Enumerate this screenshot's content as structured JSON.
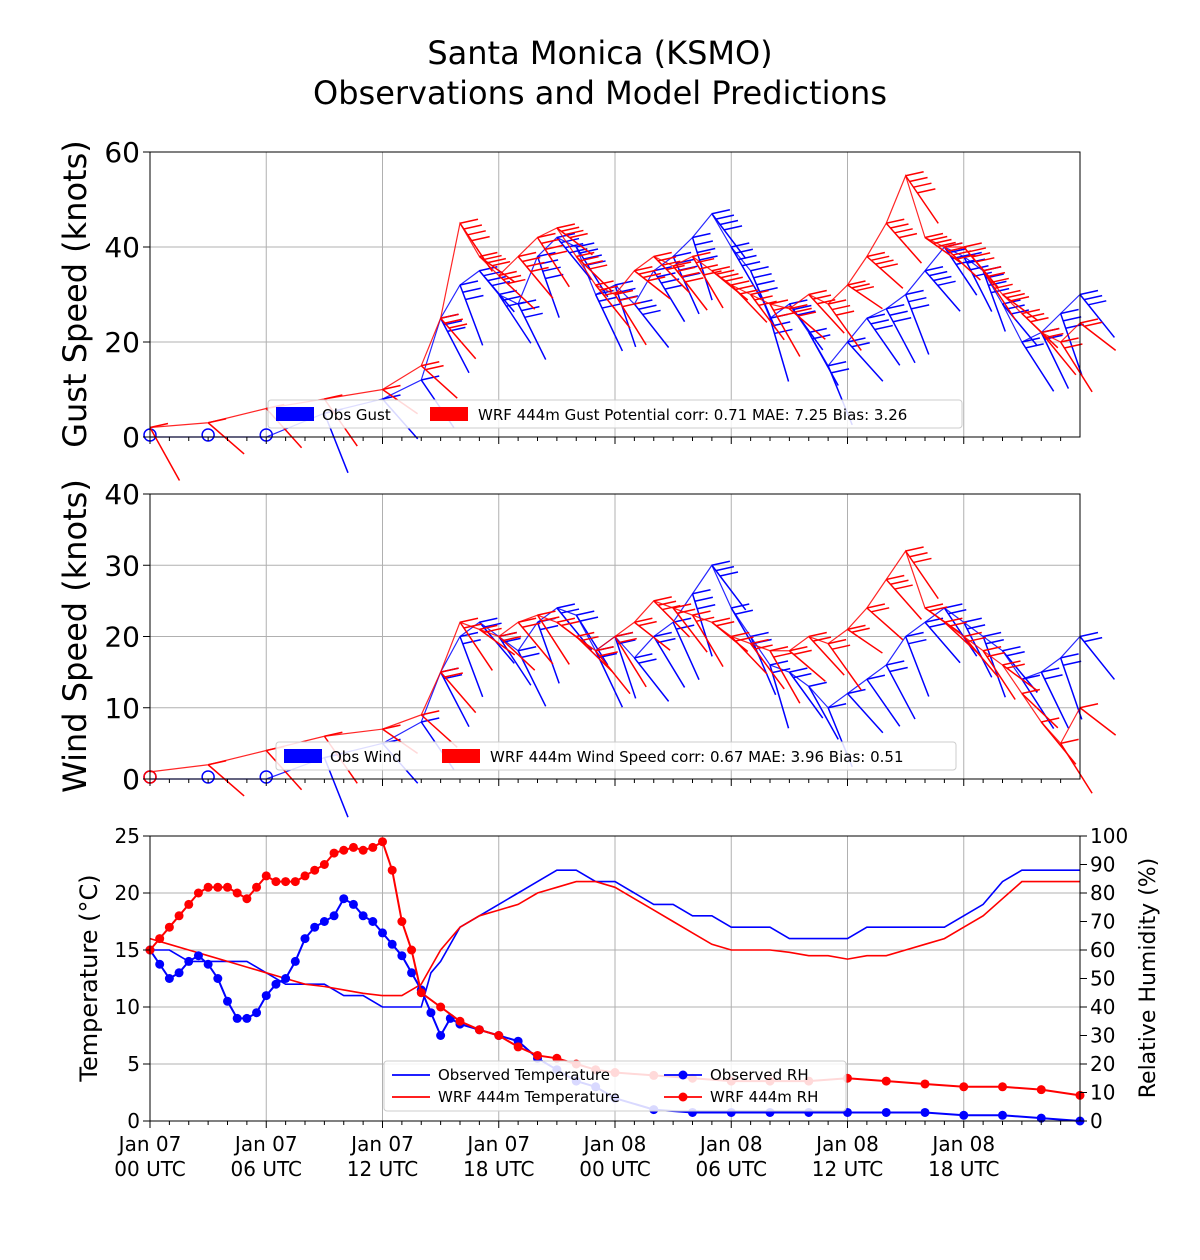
{
  "title": {
    "line1": "Santa Monica (KSMO)",
    "line2": "Observations and Model Predictions"
  },
  "colors": {
    "obs": "#0000ff",
    "model": "#ff0000",
    "grid": "#b0b0b0"
  },
  "chart_data": [
    {
      "type": "line",
      "panel": "gust",
      "ylabel": "Gust Speed (knots)",
      "ylim": [
        0,
        60
      ],
      "yticks": [
        "0",
        "20",
        "40",
        "60"
      ],
      "x_unit": "hours since Jan 07 00 UTC",
      "xlim": [
        0,
        48
      ],
      "grid": true,
      "legend_position": "lower center",
      "legend": [
        "Obs Gust",
        "WRF 444m Gust Potential corr: 0.71 MAE: 7.25 Bias: 3.26"
      ],
      "series": [
        {
          "name": "Obs Gust",
          "style": "wind barbs",
          "x": [
            0,
            3,
            6,
            9,
            12,
            14,
            15,
            16,
            17,
            18,
            19,
            20,
            21,
            22,
            23,
            24,
            25,
            26,
            27,
            28,
            29,
            30,
            31,
            32,
            33,
            34,
            35,
            36,
            37,
            38,
            39,
            40,
            41,
            42,
            43,
            44,
            45,
            46,
            47,
            48
          ],
          "y": [
            0,
            0,
            0,
            5,
            8,
            12,
            25,
            32,
            35,
            30,
            28,
            38,
            42,
            40,
            30,
            32,
            28,
            35,
            38,
            42,
            47,
            40,
            35,
            25,
            28,
            22,
            15,
            20,
            25,
            27,
            30,
            35,
            40,
            38,
            35,
            28,
            20,
            22,
            26,
            30
          ]
        },
        {
          "name": "WRF 444m Gust Potential",
          "style": "wind barbs",
          "x": [
            0,
            3,
            6,
            9,
            12,
            14,
            15,
            16,
            17,
            18,
            19,
            20,
            21,
            22,
            23,
            24,
            25,
            26,
            27,
            28,
            29,
            30,
            31,
            32,
            33,
            34,
            35,
            36,
            37,
            38,
            39,
            40,
            41,
            42,
            43,
            44,
            45,
            46,
            47,
            48
          ],
          "y": [
            2,
            3,
            6,
            8,
            10,
            15,
            25,
            45,
            38,
            34,
            38,
            42,
            44,
            38,
            32,
            30,
            35,
            38,
            36,
            38,
            35,
            32,
            30,
            28,
            27,
            30,
            28,
            32,
            38,
            45,
            55,
            42,
            40,
            40,
            35,
            30,
            26,
            22,
            20,
            24
          ]
        }
      ]
    },
    {
      "type": "line",
      "panel": "wind",
      "ylabel": "Wind Speed (knots)",
      "ylim": [
        0,
        40
      ],
      "yticks": [
        "0",
        "10",
        "20",
        "30",
        "40"
      ],
      "x_unit": "hours since Jan 07 00 UTC",
      "xlim": [
        0,
        48
      ],
      "grid": true,
      "legend_position": "lower center",
      "legend": [
        "Obs Wind",
        "WRF 444m Wind Speed corr: 0.67 MAE: 3.96 Bias: 0.51"
      ],
      "series": [
        {
          "name": "Obs Wind",
          "style": "wind barbs",
          "x": [
            0,
            3,
            6,
            9,
            12,
            14,
            15,
            16,
            17,
            18,
            19,
            20,
            21,
            22,
            23,
            24,
            25,
            26,
            27,
            28,
            29,
            30,
            31,
            32,
            33,
            34,
            35,
            36,
            37,
            38,
            39,
            40,
            41,
            42,
            43,
            44,
            45,
            46,
            47,
            48
          ],
          "y": [
            0,
            0,
            0,
            3,
            5,
            8,
            15,
            20,
            22,
            20,
            18,
            22,
            24,
            23,
            18,
            20,
            17,
            20,
            22,
            26,
            30,
            24,
            20,
            16,
            15,
            13,
            10,
            12,
            14,
            16,
            20,
            22,
            24,
            22,
            20,
            18,
            14,
            15,
            17,
            20
          ]
        },
        {
          "name": "WRF 444m Wind Speed",
          "style": "wind barbs",
          "x": [
            0,
            3,
            6,
            9,
            12,
            14,
            15,
            16,
            17,
            18,
            19,
            20,
            21,
            22,
            23,
            24,
            25,
            26,
            27,
            28,
            29,
            30,
            31,
            32,
            33,
            34,
            35,
            36,
            37,
            38,
            39,
            40,
            41,
            42,
            43,
            44,
            45,
            46,
            47,
            48
          ],
          "y": [
            1,
            2,
            4,
            6,
            7,
            9,
            15,
            22,
            21,
            20,
            22,
            23,
            22,
            20,
            18,
            20,
            22,
            25,
            24,
            23,
            22,
            20,
            19,
            18,
            18,
            20,
            19,
            21,
            24,
            28,
            32,
            24,
            22,
            20,
            18,
            16,
            12,
            8,
            5,
            10
          ]
        }
      ]
    },
    {
      "type": "line",
      "panel": "temperature_rh",
      "ylabel": "Temperature (°C)",
      "ylim": [
        0,
        25
      ],
      "yticks": [
        "0",
        "5",
        "10",
        "15",
        "20",
        "25"
      ],
      "y2label": "Relative Humidity (%)",
      "y2lim": [
        0,
        100
      ],
      "y2ticks": [
        "0",
        "10",
        "20",
        "30",
        "40",
        "50",
        "60",
        "70",
        "80",
        "90",
        "100"
      ],
      "x_unit": "hours since Jan 07 00 UTC",
      "xlim": [
        0,
        48
      ],
      "xticks": [
        {
          "x": 0,
          "line1": "Jan 07",
          "line2": "00 UTC"
        },
        {
          "x": 6,
          "line1": "Jan 07",
          "line2": "06 UTC"
        },
        {
          "x": 12,
          "line1": "Jan 07",
          "line2": "12 UTC"
        },
        {
          "x": 18,
          "line1": "Jan 07",
          "line2": "18 UTC"
        },
        {
          "x": 24,
          "line1": "Jan 08",
          "line2": "00 UTC"
        },
        {
          "x": 30,
          "line1": "Jan 08",
          "line2": "06 UTC"
        },
        {
          "x": 36,
          "line1": "Jan 08",
          "line2": "12 UTC"
        },
        {
          "x": 42,
          "line1": "Jan 08",
          "line2": "18 UTC"
        }
      ],
      "grid": true,
      "legend_position": "lower center",
      "legend": [
        "Observed Temperature",
        "WRF 444m Temperature",
        "Observed RH",
        "WRF 444m RH"
      ],
      "series": [
        {
          "name": "Observed Temperature",
          "axis": "left",
          "style": "line",
          "x": [
            0,
            1,
            2,
            3,
            4,
            5,
            6,
            7,
            8,
            9,
            10,
            11,
            12,
            13,
            14,
            14.5,
            15,
            16,
            17,
            18,
            19,
            20,
            21,
            22,
            23,
            24,
            25,
            26,
            27,
            28,
            29,
            30,
            31,
            32,
            33,
            34,
            35,
            36,
            37,
            38,
            39,
            40,
            41,
            42,
            43,
            44,
            45,
            46,
            47,
            48
          ],
          "y": [
            15,
            15,
            14,
            14,
            14,
            14,
            13,
            12,
            12,
            12,
            11,
            11,
            10,
            10,
            10,
            13,
            14,
            17,
            18,
            19,
            20,
            21,
            22,
            22,
            21,
            21,
            20,
            19,
            19,
            18,
            18,
            17,
            17,
            17,
            16,
            16,
            16,
            16,
            17,
            17,
            17,
            17,
            17,
            18,
            19,
            21,
            22,
            22,
            22,
            22
          ]
        },
        {
          "name": "WRF 444m Temperature",
          "axis": "left",
          "style": "line",
          "x": [
            0,
            1,
            2,
            3,
            4,
            5,
            6,
            7,
            8,
            9,
            10,
            11,
            12,
            13,
            14,
            15,
            16,
            17,
            18,
            19,
            20,
            21,
            22,
            23,
            24,
            25,
            26,
            27,
            28,
            29,
            30,
            31,
            32,
            33,
            34,
            35,
            36,
            37,
            38,
            39,
            40,
            41,
            42,
            43,
            44,
            45,
            46,
            47,
            48
          ],
          "y": [
            16,
            15.5,
            15,
            14.5,
            14,
            13.5,
            13,
            12.5,
            12,
            11.8,
            11.5,
            11.2,
            11,
            11,
            12,
            15,
            17,
            18,
            18.5,
            19,
            20,
            20.5,
            21,
            21,
            20.5,
            19.5,
            18.5,
            17.5,
            16.5,
            15.5,
            15,
            15,
            15,
            14.8,
            14.5,
            14.5,
            14.2,
            14.5,
            14.5,
            15,
            15.5,
            16,
            17,
            18,
            19.5,
            21,
            21,
            21,
            21
          ]
        },
        {
          "name": "Observed RH",
          "axis": "right",
          "style": "line with markers",
          "x": [
            0,
            0.5,
            1,
            1.5,
            2,
            2.5,
            3,
            3.5,
            4,
            4.5,
            5,
            5.5,
            6,
            6.5,
            7,
            7.5,
            8,
            8.5,
            9,
            9.5,
            10,
            10.5,
            11,
            11.5,
            12,
            12.5,
            13,
            13.5,
            14,
            14.5,
            15,
            15.5,
            16,
            17,
            18,
            19,
            20,
            21,
            22,
            23,
            24,
            26,
            28,
            30,
            32,
            34,
            36,
            38,
            40,
            42,
            44,
            46,
            48
          ],
          "y": [
            60,
            55,
            50,
            52,
            56,
            58,
            55,
            50,
            42,
            36,
            36,
            38,
            44,
            48,
            50,
            56,
            64,
            68,
            70,
            72,
            78,
            76,
            72,
            70,
            66,
            62,
            58,
            52,
            46,
            38,
            30,
            36,
            34,
            32,
            30,
            28,
            22,
            18,
            14,
            12,
            8,
            4,
            3,
            3,
            3,
            3,
            3,
            3,
            3,
            2,
            2,
            1,
            0
          ]
        },
        {
          "name": "WRF 444m RH",
          "axis": "right",
          "style": "line with markers",
          "x": [
            0,
            0.5,
            1,
            1.5,
            2,
            2.5,
            3,
            3.5,
            4,
            4.5,
            5,
            5.5,
            6,
            6.5,
            7,
            7.5,
            8,
            8.5,
            9,
            9.5,
            10,
            10.5,
            11,
            11.5,
            12,
            12.5,
            13,
            13.5,
            14,
            15,
            16,
            17,
            18,
            19,
            20,
            21,
            22,
            23,
            24,
            26,
            28,
            30,
            32,
            34,
            36,
            38,
            40,
            42,
            44,
            46,
            48
          ],
          "y": [
            60,
            64,
            68,
            72,
            76,
            80,
            82,
            82,
            82,
            80,
            78,
            82,
            86,
            84,
            84,
            84,
            86,
            88,
            90,
            94,
            95,
            96,
            95,
            96,
            98,
            88,
            70,
            60,
            45,
            40,
            35,
            32,
            30,
            26,
            23,
            22,
            20,
            18,
            17,
            16,
            15,
            14,
            14,
            14,
            15,
            14,
            13,
            12,
            12,
            11,
            9
          ]
        }
      ]
    }
  ]
}
